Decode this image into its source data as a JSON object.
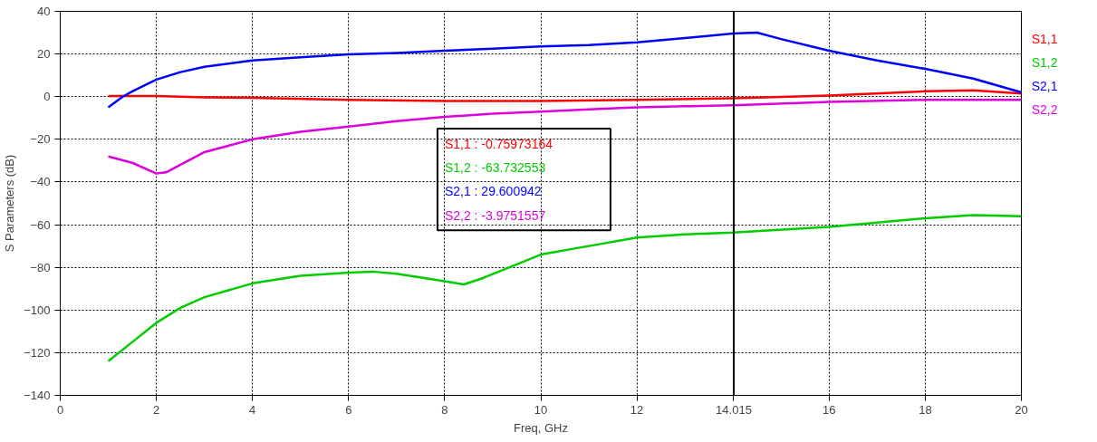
{
  "chart_data": {
    "type": "line",
    "xlabel": "Freq, GHz",
    "ylabel": "S Parameters (dB)",
    "xlim": [
      0,
      20
    ],
    "ylim": [
      -140,
      40
    ],
    "xticks": [
      0,
      2,
      4,
      6,
      8,
      10,
      12,
      {
        "value": 14,
        "label": null
      },
      16,
      18,
      20
    ],
    "yticks": [
      -140,
      -120,
      -100,
      -80,
      -60,
      -40,
      -20,
      0,
      20,
      40
    ],
    "grid": true,
    "line_style": "solid",
    "marker": "none",
    "series": [
      {
        "name": "S1,1",
        "color": "#ff0000",
        "x": [
          1,
          2,
          3,
          4,
          6,
          8,
          10,
          12,
          14,
          16,
          18,
          19,
          20
        ],
        "values": [
          0.3,
          0.3,
          -0.3,
          -0.5,
          -1.5,
          -2,
          -2,
          -1.5,
          -0.8,
          0.5,
          2.5,
          3,
          1.5
        ]
      },
      {
        "name": "S1,2",
        "color": "#00cc00",
        "x": [
          1,
          1.5,
          2,
          2.5,
          3,
          4,
          5,
          6,
          6.5,
          7,
          8,
          8.4,
          8.8,
          10,
          11,
          12,
          13,
          14,
          16,
          18,
          19,
          20
        ],
        "values": [
          -124,
          -115,
          -106,
          -99,
          -94,
          -87.5,
          -84,
          -82.5,
          -82,
          -83,
          -86.5,
          -88,
          -85,
          -74,
          -70,
          -66,
          -64.5,
          -63.7,
          -61,
          -57,
          -55.5,
          -56
        ]
      },
      {
        "name": "S2,1",
        "color": "#0000ff",
        "x": [
          1,
          1.3,
          1.5,
          2,
          2.5,
          3,
          4,
          5,
          6,
          7,
          8,
          9,
          10,
          11,
          12,
          13,
          14,
          14.5,
          15,
          16,
          17,
          18,
          19,
          20
        ],
        "values": [
          -5,
          0,
          2.5,
          8,
          11.5,
          14,
          17,
          18.5,
          19.8,
          20.5,
          21.5,
          22.5,
          23.5,
          24.2,
          25.5,
          27.5,
          29.6,
          30,
          27,
          21.5,
          17,
          13,
          8.5,
          2
        ]
      },
      {
        "name": "S2,2",
        "color": "#dd00dd",
        "x": [
          1,
          1.5,
          2,
          2.2,
          3,
          4,
          5,
          6,
          7,
          8,
          9,
          10,
          11,
          12,
          13,
          14,
          16,
          18,
          20
        ],
        "values": [
          -28,
          -31,
          -36,
          -35.5,
          -26,
          -20,
          -16.5,
          -14,
          -11.5,
          -9.5,
          -8,
          -7,
          -6,
          -5,
          -4.5,
          -4,
          -2.5,
          -1.5,
          -1.5
        ]
      }
    ],
    "ref_lines": [
      {
        "axis": "x",
        "value": 14.015,
        "label": "14.015",
        "color": "#000000"
      }
    ],
    "annotations": [
      "S1,1 : -0.75973164",
      "S1,2 : -63.732553",
      "S2,1 : 29.600942",
      "S2,2 : -3.9751557"
    ]
  }
}
